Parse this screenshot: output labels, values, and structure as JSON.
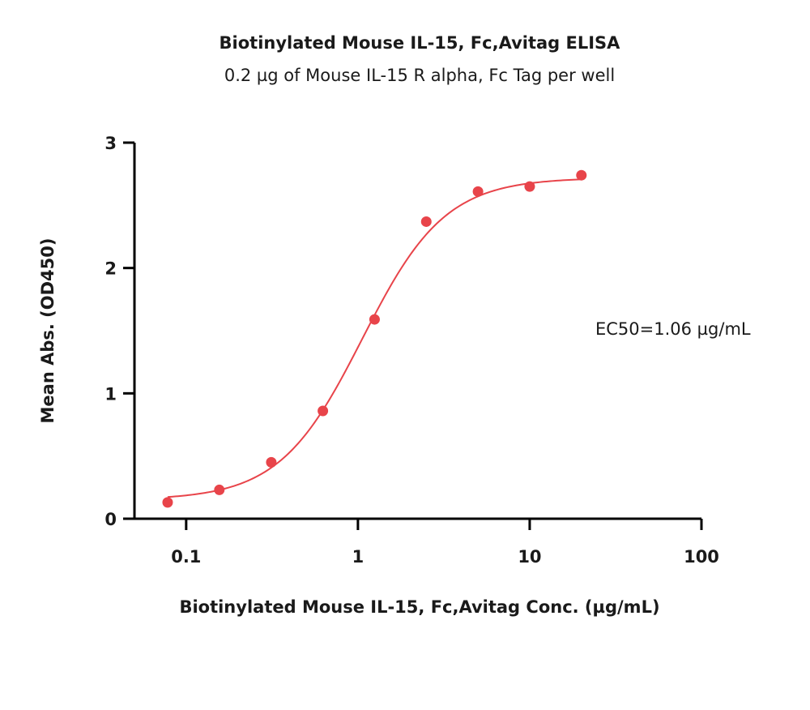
{
  "chart_data": {
    "type": "scatter",
    "title": "Biotinylated Mouse IL-15, Fc,Avitag ELISA",
    "subtitle": "0.2 µg of Mouse IL-15 R alpha, Fc Tag per well",
    "xlabel": "Biotinylated Mouse IL-15, Fc,Avitag Conc. (µg/mL)",
    "ylabel": "Mean Abs. (OD450)",
    "xscale": "log",
    "xlim": [
      0.05,
      100
    ],
    "ylim": [
      0,
      3
    ],
    "x_ticks": [
      {
        "value": 0.1,
        "label": "0.1"
      },
      {
        "value": 1,
        "label": "1"
      },
      {
        "value": 10,
        "label": "10"
      },
      {
        "value": 100,
        "label": "100"
      }
    ],
    "y_ticks": [
      {
        "value": 0,
        "label": "0"
      },
      {
        "value": 1,
        "label": "1"
      },
      {
        "value": 2,
        "label": "2"
      },
      {
        "value": 3,
        "label": "3"
      }
    ],
    "grid": false,
    "series": [
      {
        "color": "#e8444a",
        "points": [
          {
            "x": 0.078,
            "y": 0.13
          },
          {
            "x": 0.156,
            "y": 0.23
          },
          {
            "x": 0.313,
            "y": 0.45
          },
          {
            "x": 0.625,
            "y": 0.86
          },
          {
            "x": 1.25,
            "y": 1.59
          },
          {
            "x": 2.5,
            "y": 2.37
          },
          {
            "x": 5,
            "y": 2.61
          },
          {
            "x": 10,
            "y": 2.65
          },
          {
            "x": 20,
            "y": 2.74
          }
        ],
        "fit": {
          "model": "4PL",
          "bottom": 0.15,
          "top": 2.72,
          "ec50": 1.06,
          "hill": 1.8,
          "x_range": [
            0.078,
            20
          ]
        }
      }
    ],
    "annotations": [
      {
        "text": "EC50=1.06 µg/mL"
      }
    ]
  }
}
